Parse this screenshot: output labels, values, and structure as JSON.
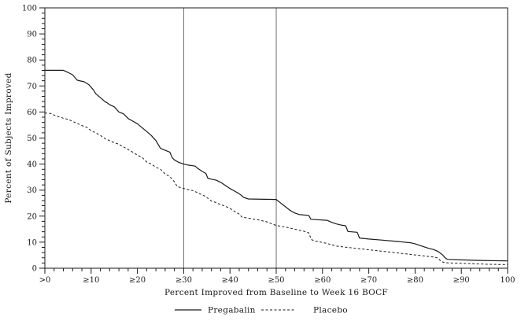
{
  "chart_data": {
    "type": "line",
    "title": "",
    "xlabel": "Percent Improved from Baseline to Week 16 BOCF",
    "ylabel": "Percent of Subjects Improved",
    "xlim": [
      0,
      100
    ],
    "ylim": [
      0,
      100
    ],
    "x_tick_values": [
      0,
      10,
      20,
      30,
      40,
      50,
      60,
      70,
      80,
      90,
      100
    ],
    "x_tick_labels": [
      ">0",
      "≥10",
      "≥20",
      "≥30",
      "≥40",
      "≥50",
      "≥60",
      "≥70",
      "≥80",
      "≥90",
      "100"
    ],
    "y_tick_values": [
      0,
      10,
      20,
      30,
      40,
      50,
      60,
      70,
      80,
      90,
      100
    ],
    "y_tick_labels": [
      "0",
      "10",
      "20",
      "30",
      "40",
      "50",
      "60",
      "70",
      "80",
      "90",
      "100"
    ],
    "minor_tick_step": 2,
    "grid": false,
    "frame": true,
    "reference_lines_x": [
      30,
      50
    ],
    "reference_line_color": "#6e6e6e",
    "axis_color": "#1a1a1a",
    "legend_position": "bottom-center",
    "series": [
      {
        "name": "Pregabalin",
        "style": "solid",
        "color": "#1a1a1a",
        "points": [
          [
            0,
            76
          ],
          [
            4,
            76
          ],
          [
            5,
            75.2
          ],
          [
            6,
            74.3
          ],
          [
            7,
            72.2
          ],
          [
            8.5,
            71.6
          ],
          [
            9.5,
            70.5
          ],
          [
            10.5,
            68.5
          ],
          [
            11,
            67
          ],
          [
            12,
            65.5
          ],
          [
            13,
            64
          ],
          [
            13.5,
            63.5
          ],
          [
            14,
            62.8
          ],
          [
            15,
            62
          ],
          [
            16,
            60
          ],
          [
            17,
            59.3
          ],
          [
            18,
            57.5
          ],
          [
            19,
            56.5
          ],
          [
            20,
            55.5
          ],
          [
            21,
            54
          ],
          [
            22,
            52.5
          ],
          [
            23,
            51
          ],
          [
            24,
            49
          ],
          [
            24.5,
            47.5
          ],
          [
            25,
            46
          ],
          [
            26,
            45.3
          ],
          [
            27,
            44.6
          ],
          [
            27.5,
            42.5
          ],
          [
            28,
            41.6
          ],
          [
            29,
            40.6
          ],
          [
            30,
            40
          ],
          [
            31,
            39.6
          ],
          [
            32.5,
            39.2
          ],
          [
            33,
            38.4
          ],
          [
            34,
            37.2
          ],
          [
            34.8,
            36.4
          ],
          [
            35.2,
            34.6
          ],
          [
            36,
            34.2
          ],
          [
            37,
            33.8
          ],
          [
            38,
            33
          ],
          [
            39,
            31.8
          ],
          [
            40,
            30.6
          ],
          [
            41,
            29.6
          ],
          [
            42,
            28.6
          ],
          [
            43,
            27.2
          ],
          [
            44,
            26.6
          ],
          [
            50,
            26.4
          ],
          [
            51,
            25
          ],
          [
            52,
            23.6
          ],
          [
            53,
            22.2
          ],
          [
            54,
            21.2
          ],
          [
            55,
            20.6
          ],
          [
            57,
            20.3
          ],
          [
            57.5,
            18.8
          ],
          [
            61,
            18.4
          ],
          [
            62,
            17.6
          ],
          [
            63,
            17
          ],
          [
            64,
            16.6
          ],
          [
            65,
            16.3
          ],
          [
            65.5,
            14.1
          ],
          [
            67.5,
            13.8
          ],
          [
            68,
            11.6
          ],
          [
            70,
            11.2
          ],
          [
            73,
            10.8
          ],
          [
            76,
            10.3
          ],
          [
            79,
            9.8
          ],
          [
            80,
            9.4
          ],
          [
            81,
            8.8
          ],
          [
            82,
            8.2
          ],
          [
            83,
            7.6
          ],
          [
            84,
            7.2
          ],
          [
            85,
            6.4
          ],
          [
            86,
            5
          ],
          [
            86.5,
            4
          ],
          [
            87,
            3.4
          ],
          [
            90,
            3.2
          ],
          [
            94,
            3
          ],
          [
            100,
            2.8
          ]
        ]
      },
      {
        "name": "Placebo",
        "style": "dashed",
        "color": "#1a1a1a",
        "points": [
          [
            0,
            59.6
          ],
          [
            1.5,
            59.4
          ],
          [
            2,
            58.8
          ],
          [
            3,
            58.2
          ],
          [
            4,
            57.6
          ],
          [
            5,
            57.2
          ],
          [
            6,
            56.4
          ],
          [
            7,
            55.6
          ],
          [
            8,
            54.8
          ],
          [
            9,
            54.2
          ],
          [
            10,
            52.8
          ],
          [
            11,
            52
          ],
          [
            12,
            51
          ],
          [
            13,
            49.8
          ],
          [
            14,
            49
          ],
          [
            15,
            48.2
          ],
          [
            16,
            47.6
          ],
          [
            17,
            46.6
          ],
          [
            18,
            45.6
          ],
          [
            19,
            44.6
          ],
          [
            20,
            43.4
          ],
          [
            21,
            42.6
          ],
          [
            22,
            40.8
          ],
          [
            23,
            40
          ],
          [
            24,
            38.8
          ],
          [
            25,
            38
          ],
          [
            26,
            36.2
          ],
          [
            27,
            35.2
          ],
          [
            28,
            33.2
          ],
          [
            28.6,
            31.4
          ],
          [
            30,
            30.6
          ],
          [
            31,
            30.2
          ],
          [
            32,
            29.8
          ],
          [
            33,
            29
          ],
          [
            34,
            28.2
          ],
          [
            34.7,
            27.6
          ],
          [
            36,
            25.8
          ],
          [
            37,
            25.2
          ],
          [
            38,
            24.4
          ],
          [
            39,
            23.8
          ],
          [
            40,
            23
          ],
          [
            41,
            21.8
          ],
          [
            42,
            20.8
          ],
          [
            42.6,
            19.6
          ],
          [
            44,
            19.2
          ],
          [
            46,
            18.6
          ],
          [
            48,
            17.8
          ],
          [
            50,
            16.4
          ],
          [
            52,
            15.8
          ],
          [
            53,
            15.4
          ],
          [
            54,
            15
          ],
          [
            55,
            14.6
          ],
          [
            56,
            14.2
          ],
          [
            57,
            13.6
          ],
          [
            57.6,
            11
          ],
          [
            58.5,
            10.4
          ],
          [
            60,
            9.9
          ],
          [
            61,
            9.5
          ],
          [
            63,
            8.5
          ],
          [
            65,
            8.1
          ],
          [
            68,
            7.5
          ],
          [
            71,
            6.9
          ],
          [
            74,
            6.3
          ],
          [
            77,
            5.7
          ],
          [
            80,
            5.1
          ],
          [
            82,
            4.7
          ],
          [
            84,
            4.3
          ],
          [
            85,
            3.9
          ],
          [
            85.6,
            2.6
          ],
          [
            86.5,
            2.1
          ],
          [
            88,
            2
          ],
          [
            90,
            1.9
          ],
          [
            93,
            1.7
          ],
          [
            96,
            1.5
          ],
          [
            100,
            1.4
          ]
        ]
      }
    ]
  }
}
